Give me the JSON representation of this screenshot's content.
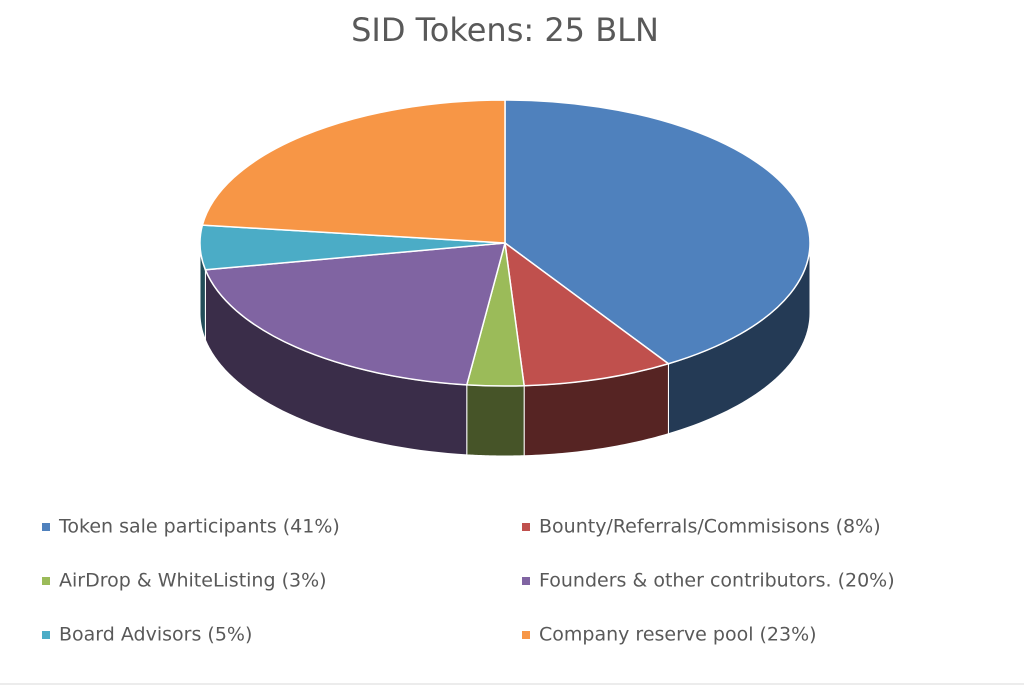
{
  "chart_data": {
    "type": "pie",
    "title": "SID Tokens: 25 BLN",
    "categories": [
      "Token sale participants (41%)",
      "Bounty/Referrals/Commisisons (8%)",
      "AirDrop & WhiteListing (3%)",
      "Founders & other contributors. (20%)",
      "Board Advisors (5%)",
      "Company reserve pool (23%)"
    ],
    "values": [
      41,
      8,
      3,
      20,
      5,
      23
    ],
    "colors": [
      "#4f81bd",
      "#c0504d",
      "#9bbb59",
      "#8064a2",
      "#4bacc6",
      "#f79646"
    ],
    "legend": "bottom"
  }
}
